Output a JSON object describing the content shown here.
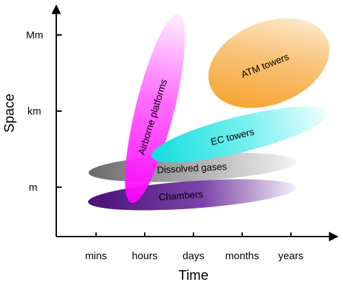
{
  "axes": {
    "x_title": "Time",
    "y_title": "Space",
    "x_ticks": [
      "mins",
      "hours",
      "days",
      "months",
      "years"
    ],
    "y_ticks": [
      "m",
      "km",
      "Mm"
    ]
  },
  "platforms": {
    "chambers": "Chambers",
    "dissolved_gases": "Dissolved gases",
    "ec_towers": "EC towers",
    "airborne": "Airborne platforms",
    "atm_towers": "ATM towers"
  },
  "colors": {
    "chambers": "#5b1a86",
    "dissolved_gases": "#7a7a7a",
    "ec_towers": "#22e6e6",
    "airborne": "#ff1aff",
    "atm_towers": "#f7a227",
    "axis": "#000000"
  }
}
